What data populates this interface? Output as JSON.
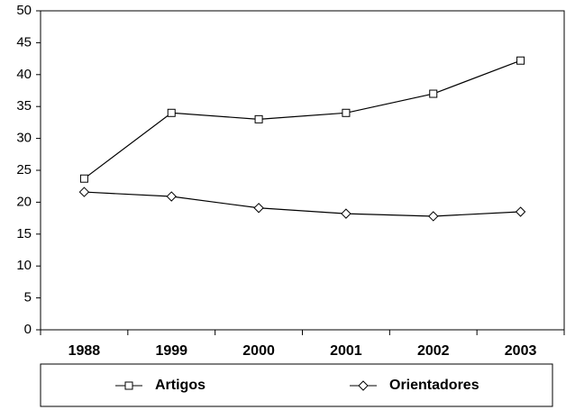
{
  "chart_data": {
    "type": "line",
    "categories": [
      "1988",
      "1999",
      "2000",
      "2001",
      "2002",
      "2003"
    ],
    "series": [
      {
        "name": "Artigos",
        "color": "#000000",
        "marker": "square",
        "values": [
          23.7,
          34,
          33,
          34,
          37,
          42.2
        ]
      },
      {
        "name": "Orientadores",
        "color": "#000000",
        "marker": "diamond",
        "values": [
          21.6,
          20.9,
          19.1,
          18.2,
          17.8,
          18.5
        ]
      }
    ],
    "ylim": [
      0,
      50
    ],
    "yticks": [
      0,
      5,
      10,
      15,
      20,
      25,
      30,
      35,
      40,
      45,
      50
    ],
    "grid": false,
    "legend": "bottom"
  }
}
